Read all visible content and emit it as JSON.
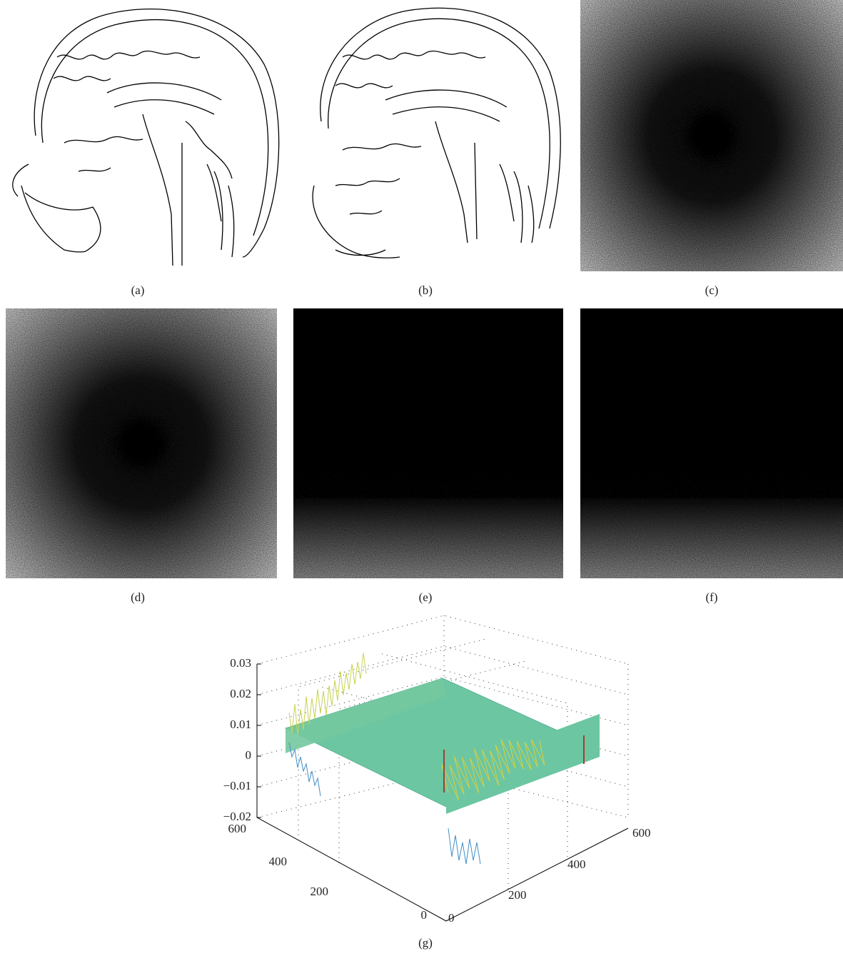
{
  "panels": [
    {
      "caption": "(a)"
    },
    {
      "caption": "(b)"
    },
    {
      "caption": "(c)"
    },
    {
      "caption": "(d)"
    },
    {
      "caption": "(e)"
    },
    {
      "caption": "(f)"
    },
    {
      "caption": "(g)"
    }
  ],
  "surface_plot": {
    "z_ticks": [
      "0.03",
      "0.02",
      "0.01",
      "0",
      "−0.01",
      "−0.02"
    ],
    "left_ticks": [
      "600",
      "400",
      "200",
      "0"
    ],
    "right_ticks": [
      "0",
      "200",
      "400",
      "600"
    ]
  }
}
